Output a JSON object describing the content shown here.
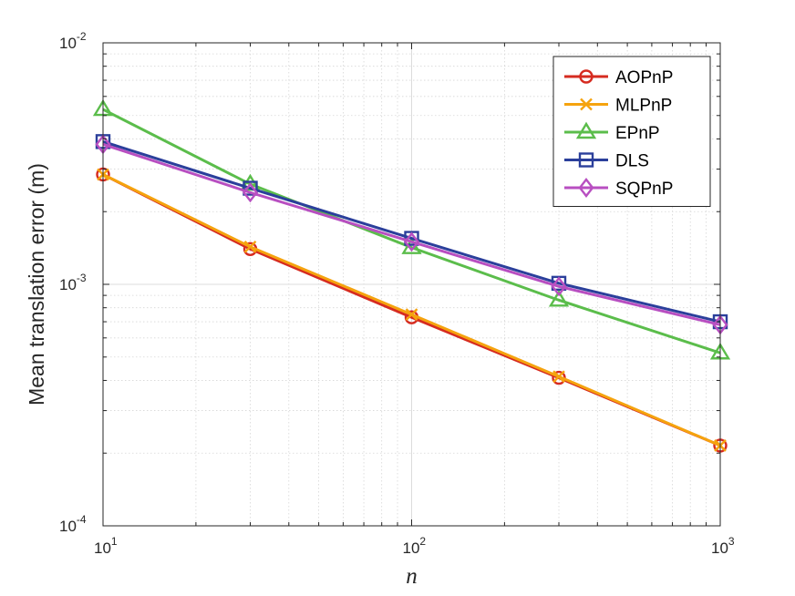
{
  "chart_data": {
    "type": "line",
    "xscale": "log",
    "yscale": "log",
    "xlim": [
      10,
      1000
    ],
    "ylim": [
      0.0001,
      0.01
    ],
    "xlabel": "n",
    "ylabel": "Mean translation error (m)",
    "grid": true,
    "minor_grid": true,
    "legend_location": "top-right",
    "x_ticks": [
      {
        "value": 10,
        "base": "10",
        "exp": "1"
      },
      {
        "value": 100,
        "base": "10",
        "exp": "2"
      },
      {
        "value": 1000,
        "base": "10",
        "exp": "3"
      }
    ],
    "y_ticks": [
      {
        "value": 0.0001,
        "base": "10",
        "exp": "-4"
      },
      {
        "value": 0.001,
        "base": "10",
        "exp": "-3"
      },
      {
        "value": 0.01,
        "base": "10",
        "exp": "-2"
      }
    ],
    "x": [
      10,
      30,
      100,
      300,
      1000
    ],
    "series": [
      {
        "name": "AOPnP",
        "color": "#d62b20",
        "marker": "circle",
        "values": [
          0.00285,
          0.0014,
          0.00073,
          0.00041,
          0.000215
        ]
      },
      {
        "name": "MLPnP",
        "color": "#f5a30e",
        "marker": "x",
        "values": [
          0.00285,
          0.00143,
          0.00075,
          0.000415,
          0.000215
        ]
      },
      {
        "name": "EPnP",
        "color": "#5bbd4b",
        "marker": "triangle",
        "values": [
          0.0053,
          0.0026,
          0.00142,
          0.00086,
          0.00052
        ]
      },
      {
        "name": "DLS",
        "color": "#2b3f9b",
        "marker": "square",
        "values": [
          0.0039,
          0.0025,
          0.00155,
          0.00101,
          0.0007
        ]
      },
      {
        "name": "SQPnP",
        "color": "#b84fc1",
        "marker": "diamond",
        "values": [
          0.0038,
          0.0024,
          0.0015,
          0.00098,
          0.00068
        ]
      }
    ]
  }
}
